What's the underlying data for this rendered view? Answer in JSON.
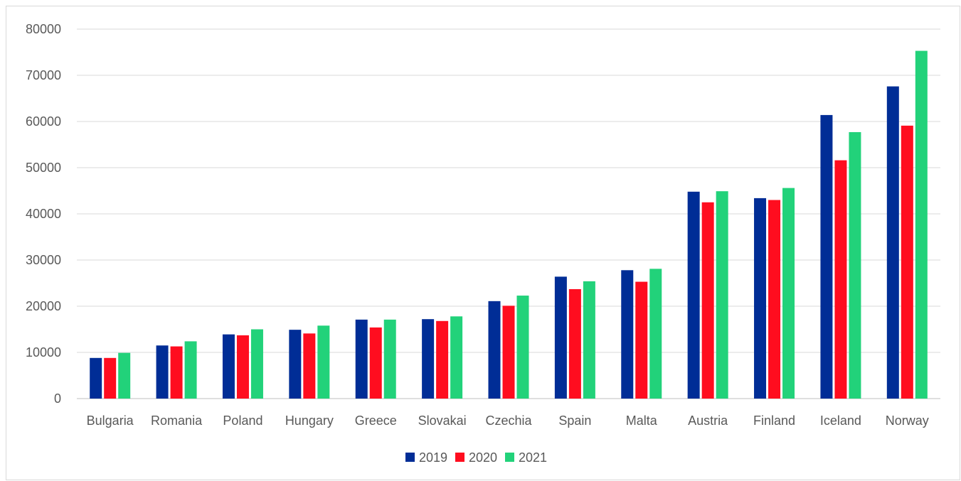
{
  "chart_data": {
    "type": "bar",
    "title": "",
    "xlabel": "",
    "ylabel": "",
    "ylim": [
      0,
      80000
    ],
    "yticks": [
      0,
      10000,
      20000,
      30000,
      40000,
      50000,
      60000,
      70000,
      80000
    ],
    "yticklabels": [
      "0",
      "10000",
      "20000",
      "30000",
      "40000",
      "50000",
      "60000",
      "70000",
      "80000"
    ],
    "grid": true,
    "legend_position": "bottom",
    "categories": [
      "Bulgaria",
      "Romania",
      "Poland",
      "Hungary",
      "Greece",
      "Slovakai",
      "Czechia",
      "Spain",
      "Malta",
      "Austria",
      "Finland",
      "Iceland",
      "Norway"
    ],
    "series": [
      {
        "name": "2019",
        "color": "#002d96",
        "values": [
          8800,
          11500,
          13900,
          14900,
          17100,
          17200,
          21100,
          26400,
          27800,
          44800,
          43400,
          61400,
          67600
        ]
      },
      {
        "name": "2020",
        "color": "#ff0d1f",
        "values": [
          8800,
          11300,
          13700,
          14100,
          15400,
          16800,
          20100,
          23700,
          25300,
          42500,
          43000,
          51600,
          59100
        ]
      },
      {
        "name": "2021",
        "color": "#22d27a",
        "values": [
          9900,
          12400,
          15000,
          15800,
          17100,
          17800,
          22300,
          25400,
          28100,
          44900,
          45600,
          57700,
          75300
        ]
      }
    ]
  }
}
